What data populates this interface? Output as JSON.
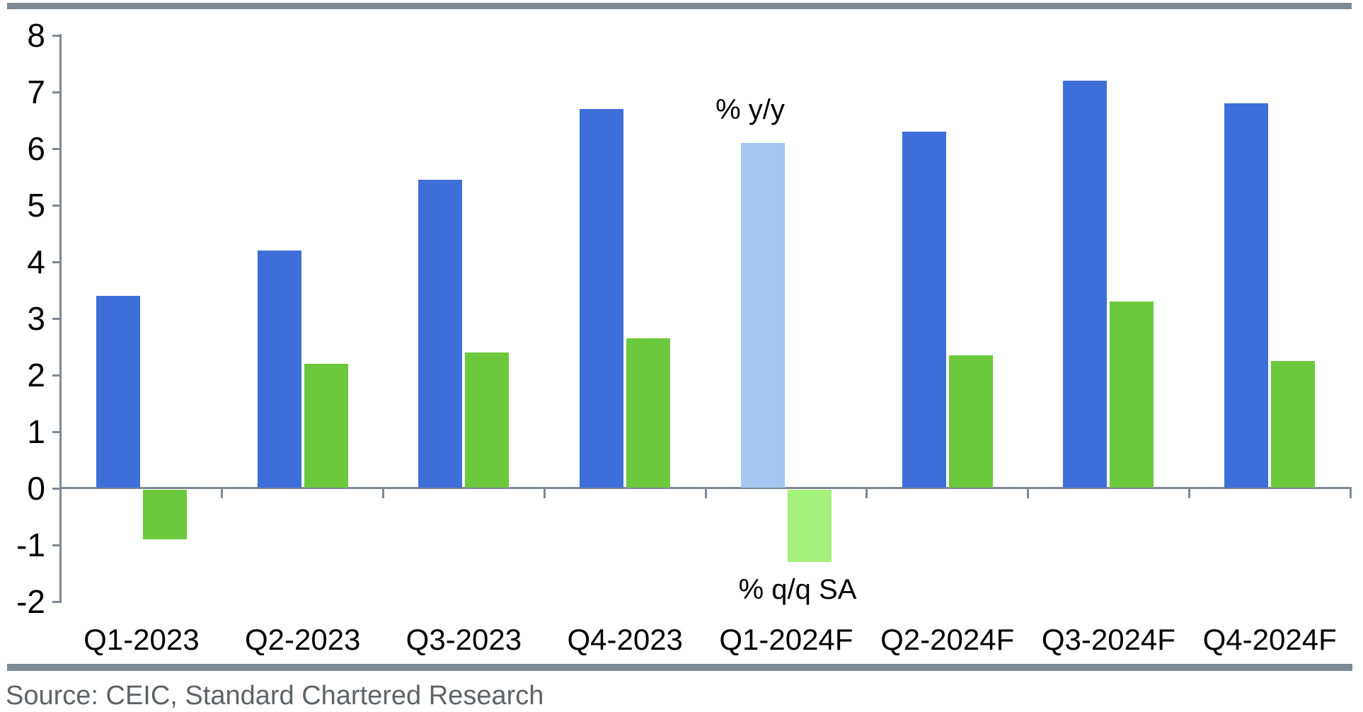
{
  "chart_data": {
    "type": "bar",
    "categories": [
      "Q1-2023",
      "Q2-2023",
      "Q3-2023",
      "Q4-2023",
      "Q1-2024F",
      "Q2-2024F",
      "Q3-2024F",
      "Q4-2024F"
    ],
    "series": [
      {
        "name": "% y/y",
        "values": [
          3.4,
          4.2,
          5.45,
          6.7,
          6.1,
          6.3,
          7.2,
          6.8
        ],
        "color": "#3e6fd8",
        "forecast_color": "#a4c6f0"
      },
      {
        "name": "% q/q SA",
        "values": [
          -0.9,
          2.2,
          2.4,
          2.65,
          -1.3,
          2.35,
          3.3,
          2.25
        ],
        "color": "#6cc83c",
        "forecast_color": "#a4f17c"
      }
    ],
    "highlight_category": "Q1-2024F",
    "ylim": [
      -2,
      8
    ],
    "yticks": [
      8,
      7,
      6,
      5,
      4,
      3,
      2,
      1,
      0,
      -1,
      -2
    ],
    "grid": false,
    "legend_position": "annotations-inside-plot",
    "annotations": [
      {
        "text": "% y/y",
        "series": "% y/y"
      },
      {
        "text": "% q/q SA",
        "series": "% q/q SA"
      }
    ]
  },
  "labels": {
    "yy_annotation": "% y/y",
    "qq_annotation": "% q/q SA"
  },
  "source_note": "Source: CEIC, Standard Chartered Research",
  "colors": {
    "bar_blue": "#3e6fd8",
    "bar_blue_forecast": "#a4c6f0",
    "bar_green": "#6cc83c",
    "bar_green_forecast": "#a4f17c",
    "axis_gray": "#7e8994",
    "rule_gray": "#7c8894",
    "source_text_gray": "#5e6367"
  }
}
